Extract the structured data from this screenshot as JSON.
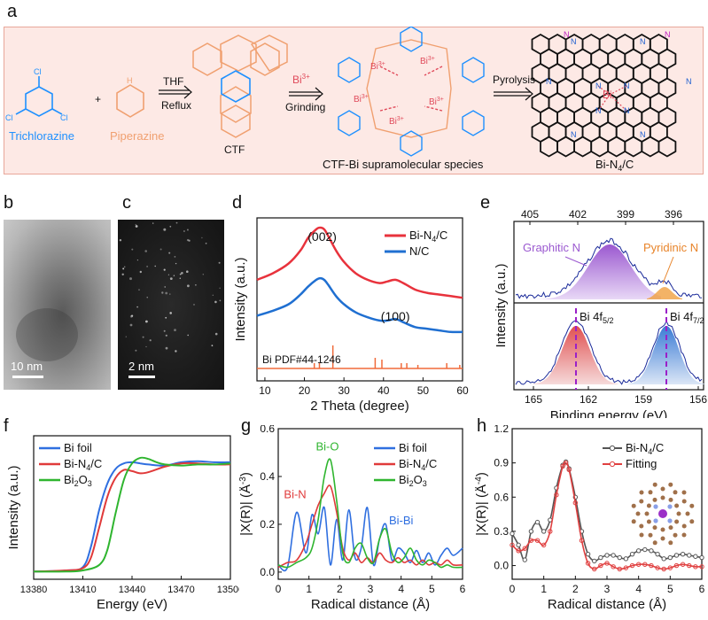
{
  "panels": {
    "a": "a",
    "b": "b",
    "c": "c",
    "d": "d",
    "e": "e",
    "f": "f",
    "g": "g",
    "h": "h"
  },
  "scheme": {
    "trichlorazine": "Trichlorazine",
    "piperazine": "Piperazine",
    "plus": "+",
    "thf": "THF",
    "reflux": "Reflux",
    "ctf": "CTF",
    "bi3": "Bi",
    "bi3_sup": "3+",
    "grinding": "Grinding",
    "supramolecular": "CTF-Bi supramolecular species",
    "pyrolysis": "Pyrolysis",
    "product_main": "Bi-N",
    "product_sub": "4",
    "product_tail": "/C",
    "cl": "Cl",
    "n": "N",
    "h": "H",
    "bi": "Bi"
  },
  "tem": {
    "b_scale": "10 nm",
    "c_scale": "2 nm"
  },
  "chart_data": [
    {
      "panel": "d",
      "type": "line",
      "xlabel": "2 Theta (degree)",
      "ylabel": "Intensity (a.u.)",
      "xlim": [
        8,
        60
      ],
      "xticks": [
        10,
        20,
        30,
        40,
        50,
        60
      ],
      "peak_labels": [
        "(002)",
        "(100)"
      ],
      "reference": {
        "label": "Bi  PDF#44-1246",
        "positions": [
          22.5,
          23.8,
          27.2,
          37.9,
          39.6,
          44.5,
          45.9,
          48.7,
          56.0,
          59.3
        ]
      },
      "series": [
        {
          "name": "Bi-N",
          "name_sub": "4",
          "name_tail": "/C",
          "color": "#e8323c",
          "x": [
            8,
            12,
            16,
            19,
            21,
            23,
            24,
            25,
            26,
            28,
            30,
            33,
            36,
            39,
            41,
            43,
            45,
            48,
            51,
            54,
            57,
            60
          ],
          "y": [
            0.62,
            0.66,
            0.72,
            0.8,
            0.88,
            0.93,
            0.94,
            0.93,
            0.89,
            0.8,
            0.73,
            0.66,
            0.62,
            0.6,
            0.61,
            0.62,
            0.6,
            0.56,
            0.54,
            0.53,
            0.52,
            0.51
          ]
        },
        {
          "name": "N/C",
          "color": "#1f6fd1",
          "x": [
            8,
            12,
            16,
            19,
            21,
            23,
            24,
            25,
            26,
            28,
            30,
            33,
            36,
            39,
            41,
            43,
            45,
            48,
            51,
            54,
            57,
            60
          ],
          "y": [
            0.4,
            0.43,
            0.47,
            0.53,
            0.58,
            0.62,
            0.63,
            0.62,
            0.59,
            0.52,
            0.47,
            0.42,
            0.39,
            0.37,
            0.37,
            0.38,
            0.36,
            0.33,
            0.32,
            0.31,
            0.3,
            0.3
          ]
        }
      ]
    },
    {
      "panel": "e",
      "type": "area",
      "xlabel": "Binding energy (eV)",
      "ylabel": "Intensity (a.u.)",
      "top_ticks": [
        "405",
        "402",
        "399",
        "396"
      ],
      "bottom_ticks": [
        "165",
        "162",
        "159",
        "156"
      ],
      "labels": {
        "graphitic": "Graphitic N",
        "pyridinic": "Pyridinic N",
        "bi52": "Bi 4f",
        "bi52_sub": "5/2",
        "bi72": "Bi 4f",
        "bi72_sub": "7/2"
      },
      "colors": {
        "graphitic": "#9b59d0",
        "pyridinic": "#f0a040",
        "bi52": "#e05050",
        "bi72": "#3a7bd5"
      }
    },
    {
      "panel": "f",
      "type": "line",
      "xlabel": "Energy (eV)",
      "ylabel": "Intensity (a.u.)",
      "xlim": [
        13380,
        13500
      ],
      "xticks": [
        13380,
        13410,
        13440,
        13470,
        13500
      ],
      "series": [
        {
          "name": "Bi foil",
          "color": "#2f6fe0",
          "x": [
            13380,
            13400,
            13410,
            13415,
            13420,
            13425,
            13430,
            13435,
            13440,
            13445,
            13450,
            13460,
            13470,
            13480,
            13490,
            13500
          ],
          "y": [
            0.02,
            0.03,
            0.06,
            0.25,
            0.58,
            0.82,
            0.95,
            1.0,
            1.01,
            1.0,
            0.99,
            0.98,
            1.01,
            1.02,
            1.01,
            1.01
          ]
        },
        {
          "name": "Bi-N",
          "name_sub": "4",
          "name_tail": "/C",
          "color": "#e03a3a",
          "x": [
            13380,
            13400,
            13410,
            13415,
            13420,
            13425,
            13430,
            13435,
            13440,
            13445,
            13450,
            13460,
            13470,
            13480,
            13490,
            13500
          ],
          "y": [
            0.02,
            0.03,
            0.05,
            0.15,
            0.42,
            0.7,
            0.87,
            0.94,
            0.93,
            0.91,
            0.92,
            0.97,
            1.0,
            1.0,
            0.99,
            0.99
          ]
        },
        {
          "name": "Bi",
          "name_sub": "2",
          "name_tail": "O",
          "name_sub2": "3",
          "color": "#2fb52f",
          "x": [
            13380,
            13400,
            13410,
            13420,
            13425,
            13430,
            13435,
            13440,
            13445,
            13450,
            13455,
            13460,
            13470,
            13480,
            13490,
            13500
          ],
          "y": [
            0.02,
            0.02,
            0.03,
            0.08,
            0.22,
            0.55,
            0.85,
            1.0,
            1.05,
            1.04,
            1.01,
            0.99,
            0.98,
            0.99,
            0.99,
            1.0
          ]
        }
      ]
    },
    {
      "panel": "g",
      "type": "line",
      "xlabel": "Radical distance (Å)",
      "ylabel": "|X(R)| (Å",
      "ylabel_sup": "-3",
      "ylim": [
        0,
        0.6
      ],
      "yticks": [
        "0.0",
        "0.2",
        "0.4",
        "0.6"
      ],
      "xticks": [
        0,
        1,
        2,
        3,
        4,
        5,
        6
      ],
      "annotations": {
        "bio": "Bi-O",
        "bin": "Bi-N",
        "bibi": "Bi-Bi"
      },
      "series": [
        {
          "name": "Bi foil",
          "color": "#2f6fe0",
          "x": [
            0,
            0.3,
            0.6,
            0.9,
            1.1,
            1.3,
            1.5,
            1.7,
            1.9,
            2.1,
            2.3,
            2.5,
            2.7,
            2.9,
            3.1,
            3.3,
            3.5,
            3.7,
            3.9,
            4.1,
            4.3,
            4.5,
            4.7,
            4.9,
            5.1,
            5.3,
            5.5,
            5.7,
            6.0
          ],
          "y": [
            0.03,
            0.02,
            0.25,
            0.08,
            0.24,
            0.16,
            0.27,
            0.03,
            0.22,
            0.05,
            0.26,
            0.06,
            0.1,
            0.27,
            0.03,
            0.14,
            0.2,
            0.05,
            0.1,
            0.08,
            0.04,
            0.09,
            0.04,
            0.08,
            0.03,
            0.07,
            0.1,
            0.07,
            0.1
          ]
        },
        {
          "name": "Bi-N",
          "name_sub": "4",
          "name_tail": "/C",
          "color": "#e03a3a",
          "x": [
            0,
            0.3,
            0.6,
            0.9,
            1.1,
            1.3,
            1.5,
            1.7,
            1.9,
            2.1,
            2.3,
            2.5,
            2.7,
            2.9,
            3.1,
            3.3,
            3.5,
            3.7,
            3.9,
            4.1,
            4.3,
            4.5,
            4.7,
            4.9,
            5.1,
            5.3,
            5.5,
            5.7,
            6.0
          ],
          "y": [
            0.02,
            0.04,
            0.05,
            0.12,
            0.2,
            0.28,
            0.33,
            0.36,
            0.25,
            0.1,
            0.05,
            0.08,
            0.04,
            0.06,
            0.04,
            0.08,
            0.05,
            0.04,
            0.06,
            0.04,
            0.05,
            0.03,
            0.05,
            0.03,
            0.04,
            0.03,
            0.05,
            0.03,
            0.03
          ]
        },
        {
          "name": "Bi",
          "name_sub": "2",
          "name_tail": "O",
          "name_sub2": "3",
          "color": "#2fb52f",
          "x": [
            0,
            0.3,
            0.6,
            0.9,
            1.1,
            1.3,
            1.5,
            1.7,
            1.9,
            2.1,
            2.3,
            2.5,
            2.7,
            2.9,
            3.1,
            3.3,
            3.5,
            3.7,
            3.9,
            4.1,
            4.3,
            4.5,
            4.7,
            4.9,
            5.1,
            5.3,
            5.5,
            5.7,
            6.0
          ],
          "y": [
            0.03,
            0.02,
            0.04,
            0.06,
            0.1,
            0.22,
            0.4,
            0.47,
            0.3,
            0.08,
            0.04,
            0.1,
            0.12,
            0.06,
            0.04,
            0.14,
            0.18,
            0.08,
            0.04,
            0.06,
            0.1,
            0.05,
            0.03,
            0.05,
            0.04,
            0.02,
            0.03,
            0.02,
            0.02
          ]
        }
      ]
    },
    {
      "panel": "h",
      "type": "line",
      "xlabel": "Radical distance (Å)",
      "ylabel": "|X(R)| (Å",
      "ylabel_sup": "-4",
      "ylim": [
        -0.1,
        1.2
      ],
      "yticks": [
        "0.0",
        "0.3",
        "0.6",
        "0.9",
        "1.2"
      ],
      "xticks": [
        0,
        1,
        2,
        3,
        4,
        5,
        6
      ],
      "series": [
        {
          "name": "Bi-N",
          "name_sub": "4",
          "name_tail": "/C",
          "color": "#555555",
          "x": [
            0,
            0.2,
            0.4,
            0.6,
            0.8,
            1.0,
            1.2,
            1.4,
            1.6,
            1.7,
            1.8,
            2.0,
            2.2,
            2.4,
            2.6,
            2.8,
            3.0,
            3.2,
            3.4,
            3.6,
            3.8,
            4.0,
            4.2,
            4.4,
            4.6,
            4.8,
            5.0,
            5.2,
            5.4,
            5.6,
            5.8,
            6.0
          ],
          "y": [
            0.28,
            0.18,
            0.05,
            0.3,
            0.38,
            0.3,
            0.4,
            0.68,
            0.88,
            0.91,
            0.85,
            0.6,
            0.3,
            0.1,
            0.04,
            0.07,
            0.09,
            0.09,
            0.07,
            0.06,
            0.1,
            0.13,
            0.14,
            0.13,
            0.1,
            0.06,
            0.07,
            0.09,
            0.1,
            0.09,
            0.08,
            0.07
          ]
        },
        {
          "name": "Fitting",
          "color": "#e04040",
          "x": [
            0,
            0.2,
            0.4,
            0.6,
            0.8,
            1.0,
            1.2,
            1.4,
            1.6,
            1.7,
            1.8,
            2.0,
            2.2,
            2.4,
            2.6,
            2.8,
            3.0,
            3.2,
            3.4,
            3.6,
            3.8,
            4.0,
            4.2,
            4.4,
            4.6,
            4.8,
            5.0,
            5.2,
            5.4,
            5.6,
            5.8,
            6.0
          ],
          "y": [
            0.18,
            0.13,
            0.15,
            0.22,
            0.22,
            0.18,
            0.3,
            0.62,
            0.87,
            0.9,
            0.84,
            0.55,
            0.22,
            0.02,
            -0.03,
            0.0,
            0.02,
            -0.01,
            -0.03,
            -0.02,
            0.0,
            0.01,
            0.01,
            0.0,
            -0.02,
            -0.03,
            -0.02,
            0.0,
            0.01,
            0.0,
            -0.01,
            -0.01
          ]
        }
      ]
    }
  ]
}
